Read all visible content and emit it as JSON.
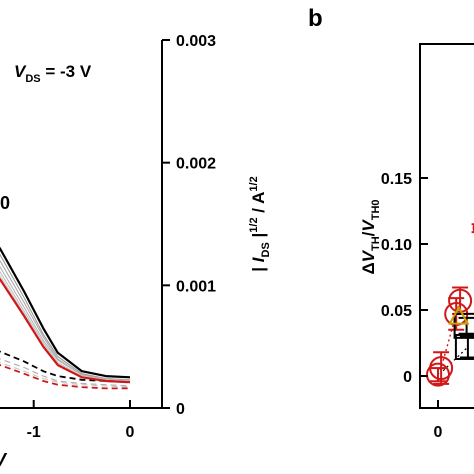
{
  "chart_data": [
    {
      "type": "line",
      "panel_label": "",
      "annotation": "V_DS = -3 V",
      "annotation_parts": {
        "v": "V",
        "sub": "DS",
        "rest": " = -3 V"
      },
      "partial_label": "0",
      "x_ticks": [
        "-1",
        "0"
      ],
      "xlabel_partial": "V",
      "xlim": [
        -1.6,
        0.1
      ],
      "ylabel": "| I_DS |^1/2 / A^1/2",
      "ylabel_parts": {
        "pre": "| ",
        "i": "I",
        "sub": "DS",
        "mid": " |",
        "sup": "1/2",
        "post": " / A",
        "sup2": "1/2"
      },
      "y_ticks": [
        "0",
        "0.001",
        "0.002",
        "0.003"
      ],
      "ylim": [
        0,
        0.003
      ],
      "series": [
        {
          "color": "#000000",
          "style": "solid",
          "width": 2.2,
          "x": [
            -1.6,
            -1.35,
            -1.1,
            -0.9,
            -0.75,
            -0.5,
            -0.25,
            0
          ],
          "values": [
            0.00155,
            0.0013,
            0.00095,
            0.00065,
            0.00045,
            0.0003,
            0.00026,
            0.00025
          ]
        },
        {
          "color": "#d01818",
          "style": "solid",
          "width": 2.2,
          "x": [
            -1.6,
            -1.35,
            -1.1,
            -0.9,
            -0.75,
            -0.5,
            -0.25,
            0
          ],
          "values": [
            0.00125,
            0.00105,
            0.00075,
            0.0005,
            0.00035,
            0.00025,
            0.00022,
            0.00021
          ]
        },
        {
          "color": "#9a9a9a",
          "style": "solid",
          "width": 1.1,
          "x": [
            -1.6,
            -1.35,
            -1.1,
            -0.9,
            -0.75,
            -0.5,
            -0.25,
            0
          ],
          "values": [
            0.0015,
            0.00125,
            0.0009,
            0.0006,
            0.00042,
            0.00028,
            0.00024,
            0.00023
          ]
        },
        {
          "color": "#aaaaaa",
          "style": "solid",
          "width": 1.1,
          "x": [
            -1.6,
            -1.35,
            -1.1,
            -0.9,
            -0.75,
            -0.5,
            -0.25,
            0
          ],
          "values": [
            0.00145,
            0.0012,
            0.00086,
            0.00058,
            0.0004,
            0.00027,
            0.00024,
            0.00023
          ]
        },
        {
          "color": "#b5b5b5",
          "style": "solid",
          "width": 1.1,
          "x": [
            -1.6,
            -1.35,
            -1.1,
            -0.9,
            -0.75,
            -0.5,
            -0.25,
            0
          ],
          "values": [
            0.0014,
            0.00115,
            0.00082,
            0.00055,
            0.00039,
            0.00027,
            0.00023,
            0.00022
          ]
        },
        {
          "color": "#c2c2c2",
          "style": "solid",
          "width": 1.1,
          "x": [
            -1.6,
            -1.35,
            -1.1,
            -0.9,
            -0.75,
            -0.5,
            -0.25,
            0
          ],
          "values": [
            0.00135,
            0.00111,
            0.00079,
            0.00053,
            0.00037,
            0.00026,
            0.00023,
            0.00022
          ]
        },
        {
          "color": "#cfcfcf",
          "style": "solid",
          "width": 1.1,
          "x": [
            -1.6,
            -1.35,
            -1.1,
            -0.9,
            -0.75,
            -0.5,
            -0.25,
            0
          ],
          "values": [
            0.0013,
            0.00108,
            0.00077,
            0.00051,
            0.00036,
            0.00026,
            0.00022,
            0.00021
          ]
        },
        {
          "color": "#000000",
          "style": "dashed",
          "width": 1.8,
          "x": [
            -1.6,
            -1.35,
            -1.1,
            -0.9,
            -0.75,
            -0.5,
            -0.25,
            0
          ],
          "values": [
            0.00052,
            0.00046,
            0.00038,
            0.0003,
            0.00026,
            0.00023,
            0.00022,
            0.00021
          ]
        },
        {
          "color": "#d01818",
          "style": "dashed",
          "width": 1.8,
          "x": [
            -1.6,
            -1.35,
            -1.1,
            -0.9,
            -0.75,
            -0.5,
            -0.25,
            0
          ],
          "values": [
            0.0004,
            0.00035,
            0.00028,
            0.00022,
            0.00019,
            0.00017,
            0.00016,
            0.00016
          ]
        },
        {
          "color": "#b0b0b0",
          "style": "dashed",
          "width": 1.2,
          "x": [
            -1.6,
            -1.35,
            -1.1,
            -0.9,
            -0.75,
            -0.5,
            -0.25,
            0
          ],
          "values": [
            0.00046,
            0.0004,
            0.00033,
            0.00026,
            0.00022,
            0.0002,
            0.00019,
            0.00018
          ]
        },
        {
          "color": "#c8c8c8",
          "style": "dashed",
          "width": 1.2,
          "x": [
            -1.6,
            -1.35,
            -1.1,
            -0.9,
            -0.75,
            -0.5,
            -0.25,
            0
          ],
          "values": [
            0.00043,
            0.00037,
            0.0003,
            0.00024,
            0.00021,
            0.00019,
            0.00018,
            0.00017
          ]
        }
      ]
    },
    {
      "type": "scatter",
      "panel_label": "b",
      "ylabel": "ΔV_TH/V_TH0",
      "ylabel_parts": {
        "delta": "Δ",
        "v1": "V",
        "sub1": "TH",
        "slash": "/",
        "v2": "V",
        "sub2": "TH0"
      },
      "x_ticks": [
        "0"
      ],
      "xlim": [
        -0.05,
        0.4
      ],
      "y_ticks": [
        "0",
        "0.05",
        "0.10",
        "0.15"
      ],
      "ylim": [
        -0.01,
        0.17
      ],
      "series": [
        {
          "marker": "circle",
          "color": "#d01818",
          "x": [
            0.0,
            0.012,
            0.07,
            0.085
          ],
          "values": [
            0.001,
            0.006,
            0.047,
            0.057
          ],
          "err": [
            0.005,
            0.012,
            0.012,
            0.01
          ]
        },
        {
          "marker": "circle",
          "color": "#d01818",
          "x": [
            0.16
          ],
          "values": [
            0.112
          ],
          "err": [
            0.003
          ]
        },
        {
          "marker": "square",
          "color": "#000000",
          "x": [
            0.115,
            0.11
          ],
          "values": [
            0.022,
            0.038
          ],
          "err": [
            0.008,
            0.006
          ]
        },
        {
          "marker": "triangle",
          "color": "#c8a000",
          "x": [
            0.08
          ],
          "values": [
            0.045
          ],
          "err": [
            0
          ]
        }
      ]
    }
  ]
}
